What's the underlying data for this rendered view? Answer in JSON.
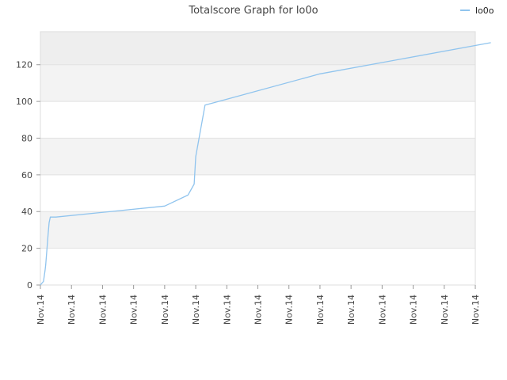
{
  "chart_data": {
    "type": "line",
    "title": "Totalscore Graph for lo0o",
    "xlabel": "",
    "ylabel": "",
    "ylim": [
      0,
      138
    ],
    "yticks": [
      0,
      20,
      40,
      60,
      80,
      100,
      120
    ],
    "x_tick_labels": [
      "Nov.14",
      "Nov.14",
      "Nov.14",
      "Nov.14",
      "Nov.14",
      "Nov.14",
      "Nov.14",
      "Nov.14",
      "Nov.14",
      "Nov.14",
      "Nov.14",
      "Nov.14",
      "Nov.14",
      "Nov.14",
      "Nov.14"
    ],
    "grid": true,
    "legend_position": "top-right",
    "series": [
      {
        "name": "lo0o",
        "color": "#90c4ee",
        "x": [
          0.0,
          0.1,
          0.15,
          0.17,
          0.25,
          0.28,
          0.32,
          0.5,
          4.0,
          4.75,
          4.95,
          5.0,
          5.3,
          9.0,
          14.5
        ],
        "y": [
          0,
          2,
          8,
          11,
          28,
          34,
          37,
          37,
          43,
          49,
          55,
          70,
          98,
          115,
          132
        ]
      }
    ]
  }
}
